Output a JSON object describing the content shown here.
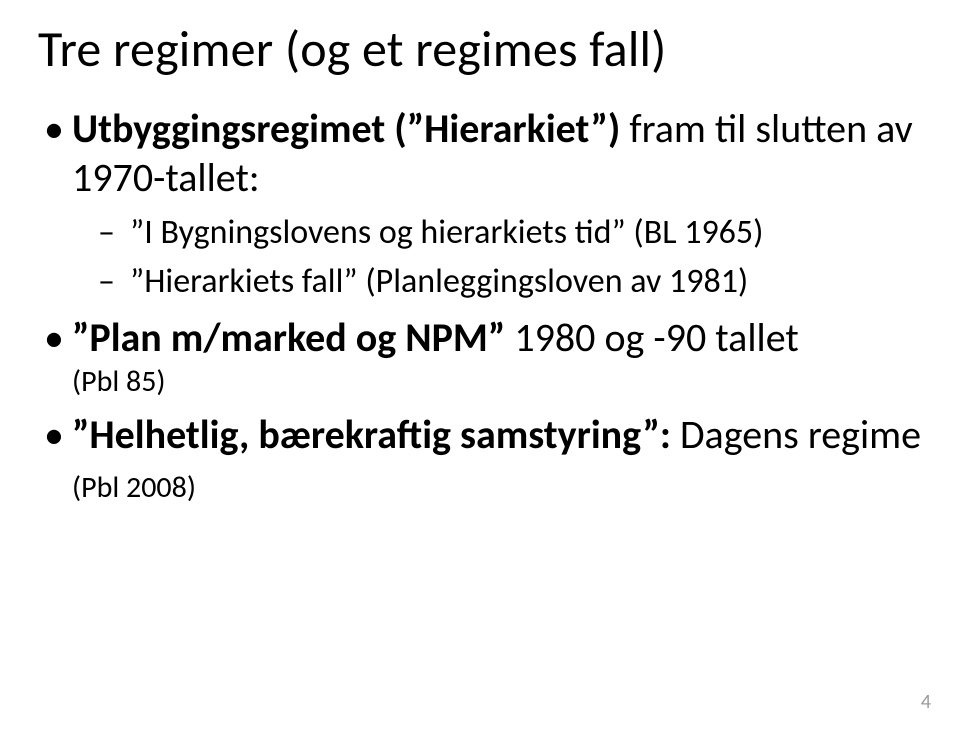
{
  "slide": {
    "title": "Tre regimer (og et regimes fall)",
    "bullets": [
      {
        "lead_bold": "Utbyggingsregimet (",
        "lead_quoted": "Hierarkiet",
        "lead_bold_after": ")",
        "rest": " fram til slutten av 1970-tallet:",
        "subs": [
          {
            "pre": "",
            "q1": "I Bygningslovens og hierarkiets tid",
            "post": " (BL 1965)"
          },
          {
            "pre": "",
            "q1": "Hierarkiets fall",
            "post": " (Planleggingsloven av 1981)"
          }
        ]
      },
      {
        "lead_q_bold": "Plan m/marked og NPM",
        "rest": " 1980 og -90 tallet",
        "note": "(Pbl 85)"
      },
      {
        "lead_q_bold": "Helhetlig, bærekraftig samstyring",
        "rest_bold_colon": ":",
        "rest": " Dagens regime ",
        "trail_small": "(Pbl 2008)"
      }
    ],
    "page_number": "4"
  }
}
